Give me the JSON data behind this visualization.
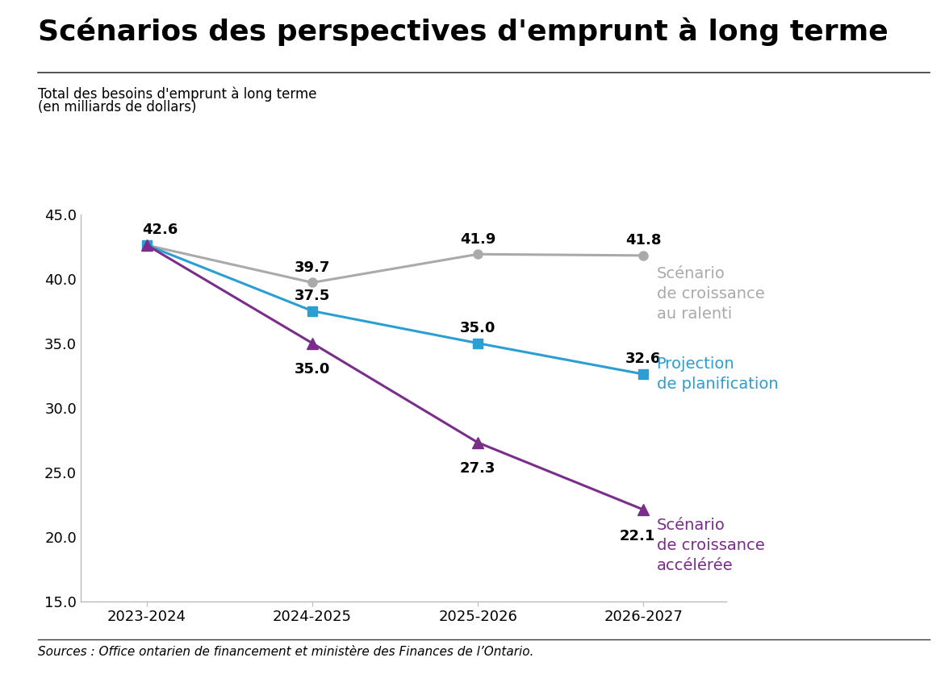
{
  "title": "Scénarios des perspectives d'emprunt à long terme",
  "ylabel_line1": "Total des besoins d'emprunt à long terme",
  "ylabel_line2": "(en milliards de dollars)",
  "source": "Sources : Office ontarien de financement et ministère des Finances de l’Ontario.",
  "x_labels": [
    "2023-2024",
    "2024-2025",
    "2025-2026",
    "2026-2027"
  ],
  "slow_growth": [
    42.6,
    39.7,
    41.9,
    41.8
  ],
  "planning": [
    42.6,
    37.5,
    35.0,
    32.6
  ],
  "fast_growth": [
    42.6,
    35.0,
    27.3,
    22.1
  ],
  "slow_color": "#AAAAAA",
  "planning_color": "#2B9ED4",
  "fast_color": "#7B2D8B",
  "ylim_min": 15.0,
  "ylim_max": 45.0,
  "yticks": [
    15.0,
    20.0,
    25.0,
    30.0,
    35.0,
    40.0,
    45.0
  ],
  "legend_slow": "Scénario\nde croissance\nau ralenti",
  "legend_planning": "Projection\nde planification",
  "legend_fast": "Scénario\nde croissance\naccélérée",
  "background_color": "#FFFFFF",
  "title_fontsize": 26,
  "label_fontsize": 12,
  "tick_fontsize": 13,
  "annotation_fontsize": 13,
  "legend_fontsize": 14
}
